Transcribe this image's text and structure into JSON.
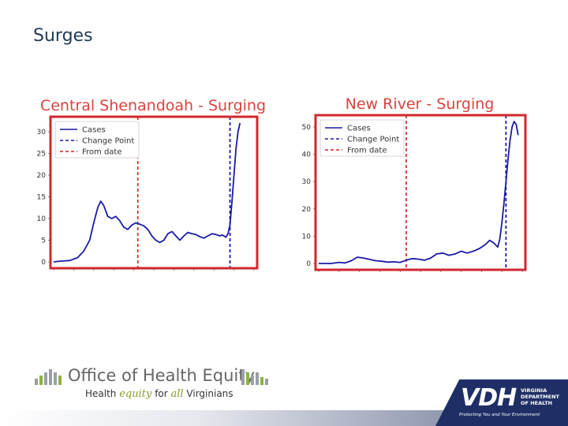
{
  "slide": {
    "title": "Surges"
  },
  "chart_data": [
    {
      "type": "line",
      "title": "Central Shenandoah - Surging",
      "ylim": [
        0,
        32
      ],
      "yticks": [
        0,
        5,
        10,
        15,
        20,
        25,
        30
      ],
      "xlim": [
        0,
        100
      ],
      "legend_position": "top-left",
      "legend": [
        "Cases",
        "Change Point",
        "From date"
      ],
      "colors": {
        "cases": "#1a1aa8",
        "change_point": "#1a1aa8",
        "from_date": "#d02020",
        "frame": "#d0282d"
      },
      "from_date_x": 42,
      "change_point_x": 88,
      "series": [
        {
          "values": [
            [
              0,
              0
            ],
            [
              4,
              0.2
            ],
            [
              8,
              0.3
            ],
            [
              12,
              1
            ],
            [
              15,
              2.5
            ],
            [
              18,
              5
            ],
            [
              20,
              9
            ],
            [
              22,
              12.5
            ],
            [
              23.5,
              14
            ],
            [
              25,
              13
            ],
            [
              27,
              10.5
            ],
            [
              29,
              10
            ],
            [
              31,
              10.5
            ],
            [
              33,
              9.5
            ],
            [
              35,
              8
            ],
            [
              37,
              7.5
            ],
            [
              39,
              8.5
            ],
            [
              41,
              9
            ],
            [
              43,
              8.7
            ],
            [
              45,
              8.3
            ],
            [
              47,
              7.5
            ],
            [
              49,
              6
            ],
            [
              51,
              5
            ],
            [
              53,
              4.5
            ],
            [
              55,
              5
            ],
            [
              57,
              6.5
            ],
            [
              59,
              7
            ],
            [
              61,
              6
            ],
            [
              63,
              5
            ],
            [
              65,
              6
            ],
            [
              67,
              6.8
            ],
            [
              69,
              6.5
            ],
            [
              71,
              6.3
            ],
            [
              73,
              5.8
            ],
            [
              75,
              5.5
            ],
            [
              77,
              6
            ],
            [
              79,
              6.5
            ],
            [
              81,
              6.3
            ],
            [
              83,
              6
            ],
            [
              84,
              6.2
            ],
            [
              85,
              6
            ],
            [
              86,
              5.7
            ],
            [
              87,
              6.5
            ],
            [
              88,
              8.5
            ],
            [
              89,
              14
            ],
            [
              90,
              20
            ],
            [
              91,
              26
            ],
            [
              92,
              30
            ],
            [
              93,
              32
            ]
          ]
        }
      ]
    },
    {
      "type": "line",
      "title": "New River - Surging",
      "ylim": [
        0,
        52
      ],
      "yticks": [
        0,
        10,
        20,
        30,
        40,
        50
      ],
      "xlim": [
        0,
        100
      ],
      "legend_position": "top-left",
      "legend": [
        "Cases",
        "Change Point",
        "From date"
      ],
      "colors": {
        "cases": "#1a1aa8",
        "change_point": "#1a1aa8",
        "from_date": "#d02020",
        "frame": "#d0282d"
      },
      "from_date_x": 43,
      "change_point_x": 92,
      "series": [
        {
          "values": [
            [
              0,
              0
            ],
            [
              6,
              0
            ],
            [
              10,
              0.4
            ],
            [
              13,
              0.2
            ],
            [
              16,
              1
            ],
            [
              19,
              2.3
            ],
            [
              22,
              2
            ],
            [
              25,
              1.5
            ],
            [
              28,
              1
            ],
            [
              31,
              0.8
            ],
            [
              34,
              0.5
            ],
            [
              37,
              0.6
            ],
            [
              40,
              0.4
            ],
            [
              43,
              1.2
            ],
            [
              46,
              1.8
            ],
            [
              49,
              1.6
            ],
            [
              52,
              1.2
            ],
            [
              55,
              2
            ],
            [
              58,
              3.5
            ],
            [
              61,
              3.8
            ],
            [
              64,
              3
            ],
            [
              67,
              3.5
            ],
            [
              70,
              4.5
            ],
            [
              73,
              3.8
            ],
            [
              76,
              4.5
            ],
            [
              79,
              5.5
            ],
            [
              82,
              7
            ],
            [
              84,
              8.5
            ],
            [
              86,
              7.5
            ],
            [
              88,
              6
            ],
            [
              89,
              9
            ],
            [
              90,
              15
            ],
            [
              91,
              22
            ],
            [
              92,
              30
            ],
            [
              93,
              38
            ],
            [
              94,
              45
            ],
            [
              95,
              50
            ],
            [
              96,
              52
            ],
            [
              97,
              51
            ],
            [
              98,
              47
            ]
          ]
        }
      ]
    }
  ],
  "footer": {
    "ohe_title": "Office of Health Equity",
    "ohe_sub_a": "Health",
    "ohe_sub_script_a": "equity",
    "ohe_sub_b": "for",
    "ohe_sub_script_b": "all",
    "ohe_sub_c": "Virginians",
    "vdh_mark": "VDH",
    "vdh_name_1": "VIRGINIA",
    "vdh_name_2": "DEPARTMENT",
    "vdh_name_3": "OF HEALTH",
    "vdh_tag": "Protecting You and Your Environment"
  }
}
